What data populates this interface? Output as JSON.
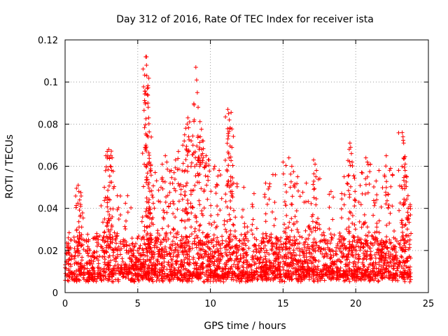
{
  "chart_data": {
    "type": "scatter",
    "title": "Day 312 of 2016, Rate Of TEC Index for receiver ista",
    "xlabel": "GPS time / hours",
    "ylabel": "ROTI / TECUs",
    "xlim": [
      0,
      25
    ],
    "ylim": [
      0,
      0.12
    ],
    "x_ticks": [
      0,
      5,
      10,
      15,
      20,
      25
    ],
    "x_tick_labels": [
      "0",
      "5",
      "10",
      "15",
      "20",
      "25"
    ],
    "y_ticks": [
      0,
      0.02,
      0.04,
      0.06,
      0.08,
      0.1,
      0.12
    ],
    "y_tick_labels": [
      "0",
      "0.02",
      "0.04",
      "0.06",
      "0.08",
      "0.1",
      "0.12"
    ],
    "grid": true,
    "marker": "+",
    "marker_color": "#ff0000",
    "series": [
      {
        "name": "ROTI",
        "baseline": {
          "x_range": [
            0,
            23.8
          ],
          "typical_min": 0.005,
          "typical_max": 0.025,
          "count": 2600
        },
        "burst_points": [
          {
            "x": 0.9,
            "y": 0.051
          },
          {
            "x": 0.95,
            "y": 0.048
          },
          {
            "x": 1.0,
            "y": 0.044
          },
          {
            "x": 2.7,
            "y": 0.05
          },
          {
            "x": 2.9,
            "y": 0.067
          },
          {
            "x": 3.0,
            "y": 0.068
          },
          {
            "x": 3.05,
            "y": 0.064
          },
          {
            "x": 3.1,
            "y": 0.06
          },
          {
            "x": 3.2,
            "y": 0.058
          },
          {
            "x": 3.6,
            "y": 0.046
          },
          {
            "x": 4.3,
            "y": 0.046
          },
          {
            "x": 5.5,
            "y": 0.069
          },
          {
            "x": 5.55,
            "y": 0.112
          },
          {
            "x": 5.6,
            "y": 0.108
          },
          {
            "x": 5.62,
            "y": 0.103
          },
          {
            "x": 5.65,
            "y": 0.097
          },
          {
            "x": 5.67,
            "y": 0.094
          },
          {
            "x": 5.7,
            "y": 0.09
          },
          {
            "x": 5.72,
            "y": 0.088
          },
          {
            "x": 5.75,
            "y": 0.083
          },
          {
            "x": 5.8,
            "y": 0.062
          },
          {
            "x": 5.9,
            "y": 0.058
          },
          {
            "x": 6.2,
            "y": 0.057
          },
          {
            "x": 6.6,
            "y": 0.05
          },
          {
            "x": 6.9,
            "y": 0.065
          },
          {
            "x": 7.0,
            "y": 0.062
          },
          {
            "x": 7.3,
            "y": 0.058
          },
          {
            "x": 7.6,
            "y": 0.063
          },
          {
            "x": 7.8,
            "y": 0.067
          },
          {
            "x": 8.1,
            "y": 0.07
          },
          {
            "x": 8.2,
            "y": 0.072
          },
          {
            "x": 8.3,
            "y": 0.078
          },
          {
            "x": 8.4,
            "y": 0.08
          },
          {
            "x": 8.45,
            "y": 0.083
          },
          {
            "x": 8.5,
            "y": 0.074
          },
          {
            "x": 8.8,
            "y": 0.07
          },
          {
            "x": 9.0,
            "y": 0.107
          },
          {
            "x": 9.05,
            "y": 0.101
          },
          {
            "x": 9.1,
            "y": 0.095
          },
          {
            "x": 9.15,
            "y": 0.088
          },
          {
            "x": 9.3,
            "y": 0.074
          },
          {
            "x": 9.4,
            "y": 0.068
          },
          {
            "x": 9.5,
            "y": 0.072
          },
          {
            "x": 9.7,
            "y": 0.065
          },
          {
            "x": 9.9,
            "y": 0.063
          },
          {
            "x": 10.3,
            "y": 0.06
          },
          {
            "x": 10.6,
            "y": 0.058
          },
          {
            "x": 11.2,
            "y": 0.087
          },
          {
            "x": 11.25,
            "y": 0.085
          },
          {
            "x": 11.3,
            "y": 0.082
          },
          {
            "x": 11.35,
            "y": 0.078
          },
          {
            "x": 11.2,
            "y": 0.073
          },
          {
            "x": 11.4,
            "y": 0.055
          },
          {
            "x": 11.6,
            "y": 0.052
          },
          {
            "x": 12.3,
            "y": 0.05
          },
          {
            "x": 13.0,
            "y": 0.047
          },
          {
            "x": 13.8,
            "y": 0.052
          },
          {
            "x": 14.3,
            "y": 0.056
          },
          {
            "x": 15.0,
            "y": 0.062
          },
          {
            "x": 15.4,
            "y": 0.064
          },
          {
            "x": 15.6,
            "y": 0.06
          },
          {
            "x": 16.0,
            "y": 0.055
          },
          {
            "x": 16.6,
            "y": 0.052
          },
          {
            "x": 17.1,
            "y": 0.063
          },
          {
            "x": 17.2,
            "y": 0.061
          },
          {
            "x": 17.3,
            "y": 0.058
          },
          {
            "x": 18.3,
            "y": 0.048
          },
          {
            "x": 19.2,
            "y": 0.055
          },
          {
            "x": 19.6,
            "y": 0.071
          },
          {
            "x": 19.65,
            "y": 0.069
          },
          {
            "x": 19.7,
            "y": 0.066
          },
          {
            "x": 19.75,
            "y": 0.062
          },
          {
            "x": 20.4,
            "y": 0.057
          },
          {
            "x": 20.7,
            "y": 0.064
          },
          {
            "x": 20.8,
            "y": 0.062
          },
          {
            "x": 21.4,
            "y": 0.053
          },
          {
            "x": 21.6,
            "y": 0.058
          },
          {
            "x": 22.0,
            "y": 0.055
          },
          {
            "x": 22.1,
            "y": 0.065
          },
          {
            "x": 22.4,
            "y": 0.059
          },
          {
            "x": 23.2,
            "y": 0.076
          },
          {
            "x": 23.25,
            "y": 0.074
          },
          {
            "x": 23.3,
            "y": 0.071
          },
          {
            "x": 23.35,
            "y": 0.064
          },
          {
            "x": 23.4,
            "y": 0.058
          },
          {
            "x": 23.6,
            "y": 0.046
          },
          {
            "x": 23.75,
            "y": 0.041
          }
        ]
      }
    ]
  }
}
